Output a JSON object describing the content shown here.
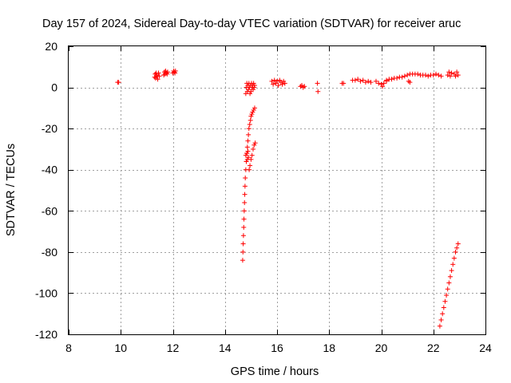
{
  "chart_data": {
    "type": "scatter",
    "title": "Day 157 of 2024, Sidereal Day-to-day VTEC variation (SDTVAR) for receiver aruc",
    "xlabel": "GPS time / hours",
    "ylabel": "SDTVAR / TECUs",
    "xlim": [
      8,
      24
    ],
    "ylim": [
      -120,
      20
    ],
    "xticks": [
      8,
      10,
      12,
      14,
      16,
      18,
      20,
      22,
      24
    ],
    "yticks": [
      -120,
      -100,
      -80,
      -60,
      -40,
      -20,
      0,
      20
    ],
    "grid": true,
    "marker": "+",
    "color": "#ff0000",
    "segments": [
      {
        "x": [
          9.88,
          9.92
        ],
        "y": [
          2.5,
          2.5
        ]
      },
      {
        "x": [
          11.3,
          11.32,
          11.34,
          11.36,
          11.38,
          11.4,
          11.42,
          11.45,
          11.48
        ],
        "y": [
          5.0,
          6.5,
          4.5,
          7.0,
          5.5,
          6.0,
          4.0,
          7.0,
          5.5
        ]
      },
      {
        "x": [
          11.65,
          11.68,
          11.7,
          11.72,
          11.75,
          11.78,
          11.8
        ],
        "y": [
          6.0,
          7.5,
          6.5,
          8.0,
          7.0,
          6.5,
          7.5
        ]
      },
      {
        "x": [
          12.0,
          12.03,
          12.05,
          12.08,
          12.1
        ],
        "y": [
          7.0,
          8.0,
          7.5,
          7.0,
          8.0
        ]
      },
      {
        "x": [
          14.68,
          14.69,
          14.7,
          14.71,
          14.72,
          14.73,
          14.74,
          14.75,
          14.76,
          14.77,
          14.78,
          14.8,
          14.82,
          14.84,
          14.86,
          14.88,
          14.9,
          14.92,
          14.95,
          14.98,
          15.0,
          15.03,
          15.06,
          15.1,
          15.14
        ],
        "y": [
          -84,
          -80,
          -76,
          -72,
          -68,
          -64,
          -60,
          -56,
          -52,
          -48,
          -44,
          -40,
          -36,
          -32,
          -29,
          -26,
          -23,
          -20,
          -18,
          -16,
          -14,
          -13,
          -12,
          -11,
          -10
        ]
      },
      {
        "x": [
          14.8,
          14.82,
          14.84,
          14.86,
          14.88,
          14.9,
          14.92,
          14.94,
          14.96,
          14.98,
          15.0,
          15.02,
          15.04,
          15.06,
          15.08,
          15.1,
          15.12,
          15.14
        ],
        "y": [
          -3,
          0,
          2,
          -2,
          1,
          -1,
          2,
          0,
          -3,
          1,
          -2,
          2,
          0,
          1,
          -1,
          2,
          0,
          1
        ]
      },
      {
        "x": [
          14.8,
          14.82,
          14.84,
          14.86,
          14.88,
          14.9,
          14.93,
          14.96,
          15.0,
          15.04,
          15.08,
          15.12,
          15.16
        ],
        "y": [
          -33,
          -36,
          -32,
          -35,
          -31,
          -34,
          -40,
          -38,
          -35,
          -33,
          -30,
          -28,
          -27
        ]
      },
      {
        "x": [
          15.8,
          15.85,
          15.9,
          15.95,
          16.0,
          16.05,
          16.1,
          16.15,
          16.2,
          16.25,
          16.3
        ],
        "y": [
          3.0,
          1.5,
          3.5,
          2.0,
          3.0,
          1.0,
          3.5,
          2.5,
          1.5,
          3.0,
          2.0
        ]
      },
      {
        "x": [
          16.9,
          16.95,
          17.0,
          17.05
        ],
        "y": [
          0.5,
          1.0,
          0.0,
          0.5
        ]
      },
      {
        "x": [
          17.55,
          17.57
        ],
        "y": [
          2.0,
          -2.0
        ]
      },
      {
        "x": [
          18.5,
          18.55
        ],
        "y": [
          2.0,
          2.0
        ]
      },
      {
        "x": [
          18.9,
          19.0,
          19.1,
          19.2,
          19.3,
          19.4,
          19.5,
          19.6
        ],
        "y": [
          3.5,
          3.5,
          4.0,
          3.0,
          3.5,
          2.5,
          3.0,
          2.5
        ]
      },
      {
        "x": [
          19.8,
          19.9,
          20.0,
          20.05,
          20.1,
          20.2
        ],
        "y": [
          3.0,
          2.0,
          1.5,
          0.5,
          2.0,
          3.0
        ]
      },
      {
        "x": [
          20.2,
          20.3,
          20.4,
          20.5,
          20.6,
          20.7,
          20.8,
          20.9,
          21.0,
          21.1,
          21.2,
          21.3,
          21.4,
          21.5,
          21.6,
          21.7,
          21.8,
          21.9,
          22.0,
          22.1,
          22.2,
          22.3
        ],
        "y": [
          3.5,
          4.0,
          4.0,
          4.5,
          4.5,
          5.0,
          5.0,
          5.5,
          6.0,
          6.5,
          6.5,
          6.5,
          6.5,
          6.0,
          6.0,
          6.0,
          5.5,
          6.0,
          6.0,
          6.5,
          6.0,
          5.5
        ]
      },
      {
        "x": [
          21.05,
          21.1
        ],
        "y": [
          3.0,
          2.5
        ]
      },
      {
        "x": [
          22.55,
          22.6,
          22.65,
          22.7
        ],
        "y": [
          6.0,
          7.5,
          5.5,
          7.0
        ]
      },
      {
        "x": [
          22.8,
          22.85,
          22.9,
          22.95
        ],
        "y": [
          6.5,
          5.5,
          7.5,
          6.0
        ]
      },
      {
        "x": [
          22.25,
          22.3,
          22.35,
          22.4,
          22.45,
          22.5,
          22.55,
          22.6,
          22.65,
          22.7,
          22.75,
          22.8,
          22.85,
          22.9,
          22.95
        ],
        "y": [
          -116,
          -113,
          -110,
          -107,
          -104,
          -101,
          -98,
          -95,
          -92,
          -89,
          -86,
          -83,
          -80,
          -78,
          -76
        ]
      }
    ]
  }
}
